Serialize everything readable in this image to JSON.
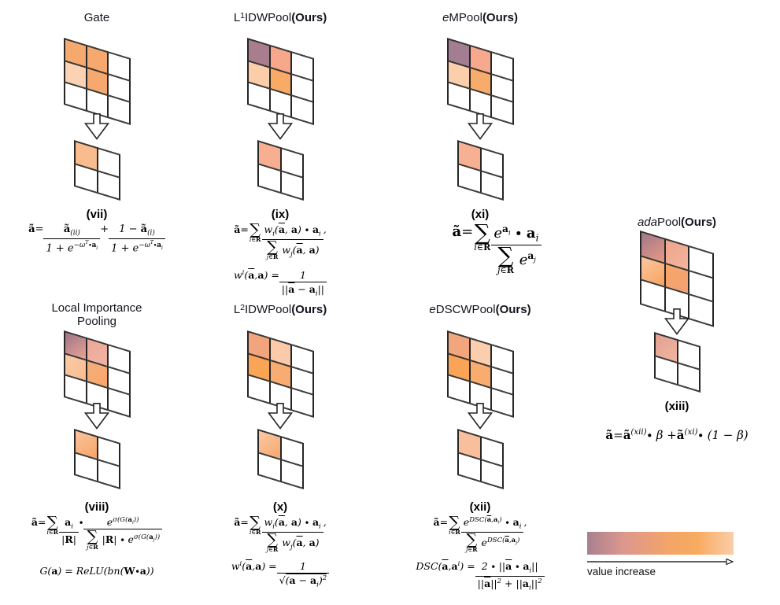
{
  "figure": {
    "background": "#ffffff",
    "grid_border_color": "#262626",
    "palette": {
      "mauve": "#a37e92",
      "salmon": "#f7a98e",
      "peach_light": "#fbcfac",
      "orange": "#f8ac6c"
    }
  },
  "panels": {
    "gate": {
      "title_html": "Gate",
      "label": "(vii)",
      "formula1_html": "<b>ã</b> = <span class='frac'><span class='num'><b>ã</b><sub>(ii)</sub></span><span class='den'>1 + e<sup>−ω<sup>T</sup>∙<b>a</b><sub>i</sub></sup></span></span> + <span class='frac'><span class='num'>1 − <b>ã</b><sub>(i)</sub></span><span class='den'>1 + e<sup>−ω<sup>T</sup>∙<b>a</b><sub>i</sub></sup></span></span>",
      "grid3": [
        "background:#f6a96e",
        "background:#f6a96e",
        "background:#ffffff",
        "background:#fbd2b3",
        "background:#f6a96e",
        "background:#ffffff",
        "background:#ffffff",
        "background:#ffffff",
        "background:#ffffff"
      ],
      "grid2": [
        "background:#f9bc8e",
        "background:#ffffff",
        "background:#ffffff",
        "background:#ffffff"
      ]
    },
    "l1": {
      "title_html": "L<sub>1</sub> IDWPool <b>(Ours)</b>",
      "label": "(ix)",
      "formula1_html": "<b>ã</b> = <span class='sum'><span class='sig'>∑</span><span class='under'>i∈<b>R</b></span></span> <span class='frac'><span class='num'>w<sub>i</sub>(<b class='ov'>a</b>, <b>a</b>) ∙ <b>a</b><sub>i</sub></span><span class='den'><span class='sum'><span class='sig'>∑</span><span class='under'>j∈<b>R</b></span></span> w<sub>j</sub>(<b class='ov'>a</b>, <b>a</b>)</span></span>,",
      "formula2_html": "w<sub>i</sub>(<b class='ov'>a</b>, <b>a</b>) = <span class='frac'><span class='num'>1</span><span class='den'>||<b class='ov'>a</b> − <b>a</b><sub>i</sub>||</span></span>",
      "grid3": [
        "background:#a87e8f",
        "background:#f6a78c",
        "background:#ffffff",
        "background:#fbcda9",
        "background:#f8ab67",
        "background:#ffffff",
        "background:#ffffff",
        "background:#ffffff",
        "background:#ffffff"
      ],
      "grid2": [
        "background:#f8ae90",
        "background:#ffffff",
        "background:#ffffff",
        "background:#ffffff"
      ]
    },
    "em": {
      "title_html": "<i>e</i>MPool <b>(Ours)</b>",
      "label": "(xi)",
      "formula1_html": "<b>ã</b> = <span class='sum'><span class='sig'>∑</span><span class='under'>i∈<b>R</b></span></span> <span class='frac'><span class='num'>e<sup><b>a</b><sub>i</sub></sup> ∙ <b>a</b><sub>i</sub></span><span class='den'><span class='sum'><span class='sig'>∑</span><span class='under'>j∈<b>R</b></span></span> e<sup><b>a</b><sub>j</sub></sup></span></span>",
      "grid3": [
        "background:#a37e92",
        "background:#f7a98e",
        "background:#ffffff",
        "background:#fbcfac",
        "background:#f8ac6c",
        "background:#ffffff",
        "background:#ffffff",
        "background:#ffffff",
        "background:#ffffff"
      ],
      "grid2": [
        "background:#f8b093",
        "background:#ffffff",
        "background:#ffffff",
        "background:#ffffff"
      ]
    },
    "lip": {
      "title_html": "Local Importance<br>Pooling",
      "label": "(viii)",
      "formula1_html": "<b>ã</b> = <span class='sum'><span class='sig'>∑</span><span class='under'>i∈<b>R</b></span></span> <span class='frac'><span class='num'><b>a</b><sub>i</sub></span><span class='den'>|<b>R</b>|</span></span> ∙ <span class='frac'><span class='num'>e<sup>σ(G(<b>a</b><sub>i</sub>))</sup></span><span class='den'><span class='sum'><span class='sig'>∑</span><span class='under'>j∈<b>R</b></span></span> |<b>R</b>| ∙ e<sup>σ(G(<b>a</b><sub>j</sub>))</sup></span></span>",
      "formula2_html": "G(<b>a</b>) = ReLU(bn(<b>W</b> ∙ <b>a</b>))",
      "grid3": [
        "background:linear-gradient(135deg,#9f7487,#e8a495)",
        "background:linear-gradient(135deg,#eca79b,#f2b3a2)",
        "background:#ffffff",
        "background:linear-gradient(135deg,#fbcba6,#f8bc90)",
        "background:linear-gradient(135deg,#f5ad7e,#f9a767)",
        "background:#ffffff",
        "background:#ffffff",
        "background:#ffffff",
        "background:#ffffff"
      ],
      "grid2": [
        "background:linear-gradient(135deg,#fac59e,#f6a466)",
        "background:#ffffff",
        "background:#ffffff",
        "background:#ffffff"
      ]
    },
    "l2": {
      "title_html": "L<sub>2</sub> IDWPool <b>(Ours)</b>",
      "label": "(x)",
      "formula1_html": "<b>ã</b> = <span class='sum'><span class='sig'>∑</span><span class='under'>i∈<b>R</b></span></span> <span class='frac'><span class='num'>w<sub>i</sub>(<b class='ov'>a</b>, <b>a</b>) ∙ <b>a</b><sub>i</sub></span><span class='den'><span class='sum'><span class='sig'>∑</span><span class='under'>j∈<b>R</b></span></span> w<sub>j</sub>(<b class='ov'>a</b>, <b>a</b>)</span></span>,",
      "formula2_html": "w<sub>i</sub>(<b class='ov'>a</b>, <b>a</b>) = <span class='frac'><span class='num'>1</span><span class='den'>√<span class='sqrt'>(<b class='ov'>a</b> − <b>a</b><sub>i</sub>)<sup>2</sup></span></span></span>",
      "grid3": [
        "background:#f2a47c",
        "background:#fbcba9",
        "background:#ffffff",
        "background:#faa455",
        "background:#f9ac72",
        "background:#ffffff",
        "background:#ffffff",
        "background:#ffffff",
        "background:#ffffff"
      ],
      "grid2": [
        "background:linear-gradient(135deg,#fbc9a4,#f7a76e)",
        "background:#ffffff",
        "background:#ffffff",
        "background:#ffffff"
      ]
    },
    "edscw": {
      "title_html": "<i>e</i>DSCWPool <b>(Ours)</b>",
      "label": "(xii)",
      "formula1_html": "<b>ã</b> = <span class='sum'><span class='sig'>∑</span><span class='under'>i∈<b>R</b></span></span> <span class='frac'><span class='num'>e<sup>DSC(<b class='ov'>a</b>,<b>a</b><sub>i</sub>)</sup> ∙ <b>a</b><sub>i</sub></span><span class='den'><span class='sum'><span class='sig'>∑</span><span class='under'>j∈<b>R</b></span></span> e<sup>DSC(<b class='ov'>a</b>,<b>a</b><sub>j</sub>)</sup></span></span>,",
      "formula2_html": "DSC(<b class='ov'>a</b>, <b>a</b><sub>i</sub>) = <span class='frac'><span class='num'>2 ∙ ||<b class='ov'>a</b> ∙ <b>a</b><sub>i</sub>||</span><span class='den'>||<b class='ov'>a</b>||<sup>2</sup> + ||<b>a</b><sub>i</sub>||<sup>2</sup></span></span>",
      "grid3": [
        "background:#f2a67e",
        "background:#fbcfae",
        "background:#ffffff",
        "background:#faa458",
        "background:#f8ac70",
        "background:#ffffff",
        "background:#ffffff",
        "background:#ffffff",
        "background:#ffffff"
      ],
      "grid2": [
        "background:#f9be9c",
        "background:#ffffff",
        "background:#ffffff",
        "background:#ffffff"
      ]
    },
    "ada": {
      "title_html": "<i>ada</i>Pool <b>(Ours)</b>",
      "label": "(xiii)",
      "formula1_html": "<b>ã</b> = <b>ã</b><sub>(xii)</sub> ∙ β + <b>ã</b><sub>(xi)</sub> ∙ (1 − β)",
      "grid3": [
        "background:linear-gradient(135deg,#a2778b,#e79a84)",
        "background:linear-gradient(135deg,#efa58c,#f3b49e)",
        "background:#ffffff",
        "background:linear-gradient(135deg,#fbc79f,#f8a360)",
        "background:linear-gradient(135deg,#f8a765,#f0a176)",
        "background:#ffffff",
        "background:#ffffff",
        "background:#ffffff",
        "background:#ffffff"
      ],
      "grid2": [
        "background:linear-gradient(135deg,#e2a093,#f2b59e)",
        "background:#ffffff",
        "background:#ffffff",
        "background:#ffffff"
      ]
    }
  },
  "colorbar": {
    "gradient_css": "background:linear-gradient(90deg,#a8808f 0%,#dd978d 25%,#f3a469 55%,#f8ab5f 75%,#fbcda9 100%)",
    "label": "value increase"
  }
}
